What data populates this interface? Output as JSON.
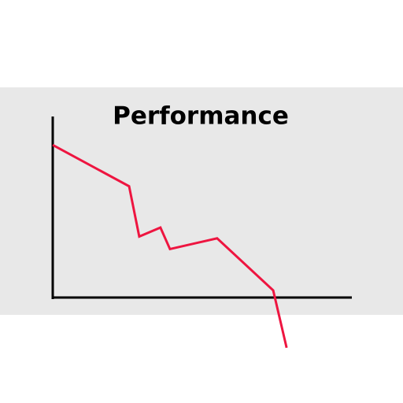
{
  "chart_data": {
    "type": "line",
    "title": "Performance",
    "x": [
      0,
      25.6,
      29,
      36.1,
      39.3,
      55.1,
      73.9,
      78.4
    ],
    "series": [
      {
        "color": "#ee1540",
        "values": [
          85,
          62,
          34,
          39,
          27,
          33,
          4,
          -28
        ]
      }
    ],
    "xlim": [
      0,
      100
    ],
    "ylim": [
      0,
      100
    ]
  }
}
